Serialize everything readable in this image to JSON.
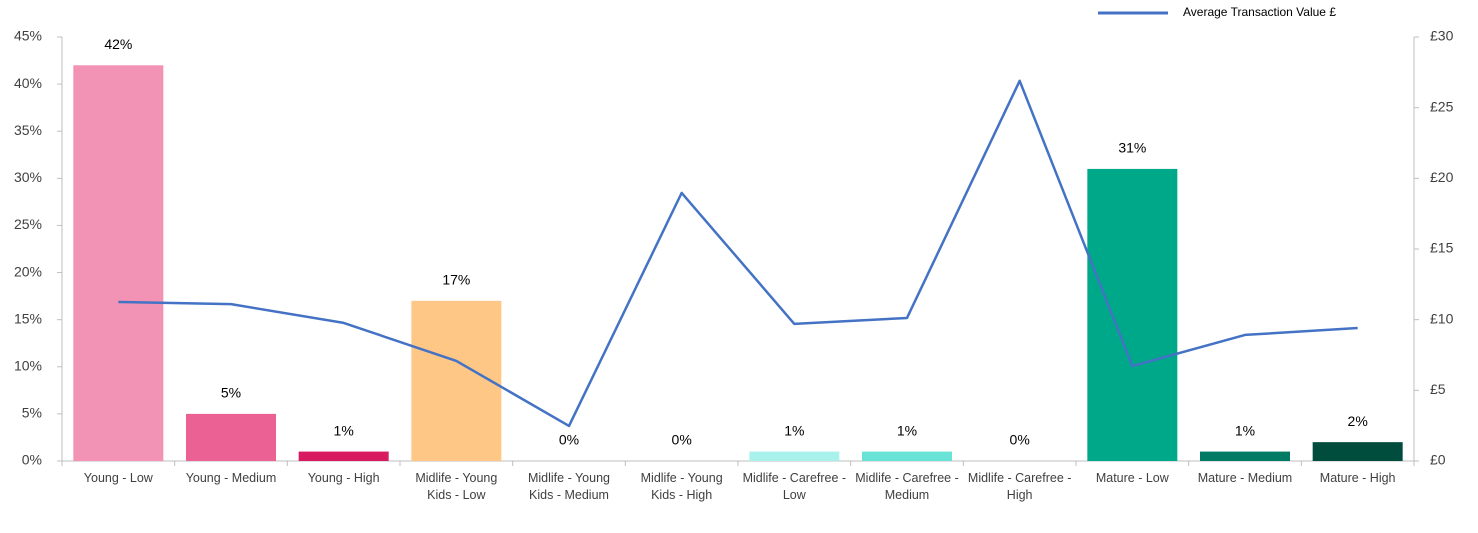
{
  "chart_data": {
    "type": "bar",
    "categories": [
      "Young - Low",
      "Young - Medium",
      "Young - High",
      "Midlife - Young Kids - Low",
      "Midlife - Young Kids - Medium",
      "Midlife - Young Kids - High",
      "Midlife - Carefree - Low",
      "Midlife - Carefree - Medium",
      "Midlife - Carefree - High",
      "Mature - Low",
      "Mature - Medium",
      "Mature - High"
    ],
    "values": [
      42,
      5,
      1,
      17,
      0,
      0,
      1,
      1,
      0,
      31,
      1,
      2
    ],
    "value_labels": [
      "42%",
      "5%",
      "1%",
      "17%",
      "0%",
      "0%",
      "1%",
      "1%",
      "0%",
      "31%",
      "1%",
      "2%"
    ],
    "colors": [
      "#f293b5",
      "#ec6193",
      "#d81b60",
      "#fec786",
      "#fec786",
      "#fec786",
      "#a9f2ec",
      "#69e3d6",
      "#69e3d6",
      "#00a88a",
      "#007a63",
      "#004d3e"
    ],
    "ylim": [
      0,
      45
    ],
    "yticks": [
      {
        "value": 0,
        "label": "0%"
      },
      {
        "value": 5,
        "label": "5%"
      },
      {
        "value": 10,
        "label": "10%"
      },
      {
        "value": 15,
        "label": "15%"
      },
      {
        "value": 20,
        "label": "20%"
      },
      {
        "value": 25,
        "label": "25%"
      },
      {
        "value": 30,
        "label": "30%"
      },
      {
        "value": 35,
        "label": "35%"
      },
      {
        "value": 40,
        "label": "40%"
      },
      {
        "value": 45,
        "label": "45%"
      }
    ],
    "y2lim": [
      0,
      30
    ],
    "y2ticks": [
      {
        "value": 0,
        "label": "£0"
      },
      {
        "value": 5,
        "label": "£5"
      },
      {
        "value": 10,
        "label": "£10"
      },
      {
        "value": 15,
        "label": "£15"
      },
      {
        "value": 20,
        "label": "£20"
      },
      {
        "value": 25,
        "label": "£25"
      },
      {
        "value": 30,
        "label": "£30"
      }
    ],
    "series": [
      {
        "name": "Average Transaction Value £",
        "type": "line",
        "axis": "y2",
        "color": "#4472c4",
        "values": [
          11.25,
          11.1,
          9.77,
          7.08,
          2.48,
          18.97,
          9.7,
          10.12,
          26.9,
          6.72,
          8.92,
          9.41
        ]
      }
    ],
    "legend": "top-right"
  }
}
